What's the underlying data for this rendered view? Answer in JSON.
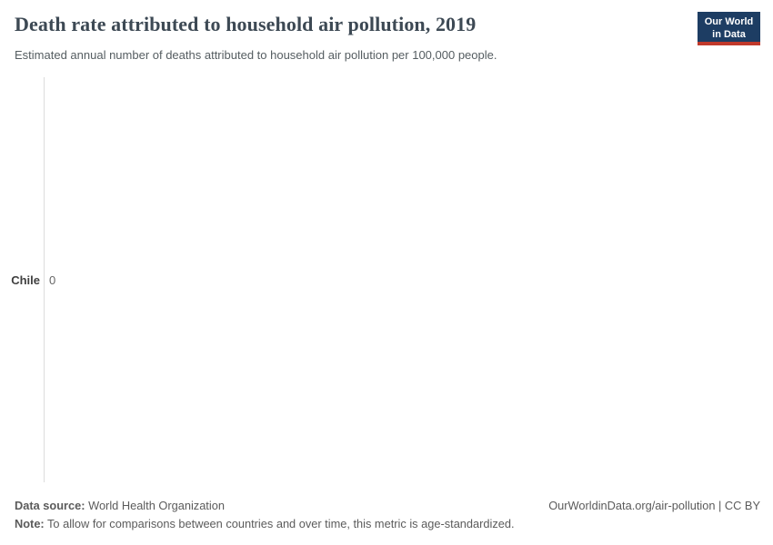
{
  "header": {
    "title": "Death rate attributed to household air pollution, 2019",
    "subtitle": "Estimated annual number of deaths attributed to household air pollution per 100,000 people.",
    "logo": {
      "line1": "Our World",
      "line2": "in Data"
    }
  },
  "chart_data": {
    "type": "bar",
    "orientation": "horizontal",
    "categories": [
      "Chile"
    ],
    "values": [
      0
    ],
    "value_labels": [
      "0"
    ],
    "title": "Death rate attributed to household air pollution, 2019",
    "xlabel": "",
    "ylabel": "",
    "xlim": [
      0,
      1
    ],
    "grid": false,
    "legend": "none"
  },
  "footer": {
    "data_source_label": "Data source:",
    "data_source_value": "World Health Organization",
    "note_label": "Note:",
    "note_value": "To allow for comparisons between countries and over time, this metric is age-standardized.",
    "license": "OurWorldinData.org/air-pollution | CC BY"
  },
  "colors": {
    "logo_background": "#1d3d63",
    "logo_stripe": "#c0392b",
    "title_text": "#3d4954",
    "subtitle_text": "#555d61",
    "footer_text": "#5b5b5b",
    "axis_line": "#dcdcdc",
    "entity_label": "#3f3f3f",
    "value_label": "#666666"
  }
}
